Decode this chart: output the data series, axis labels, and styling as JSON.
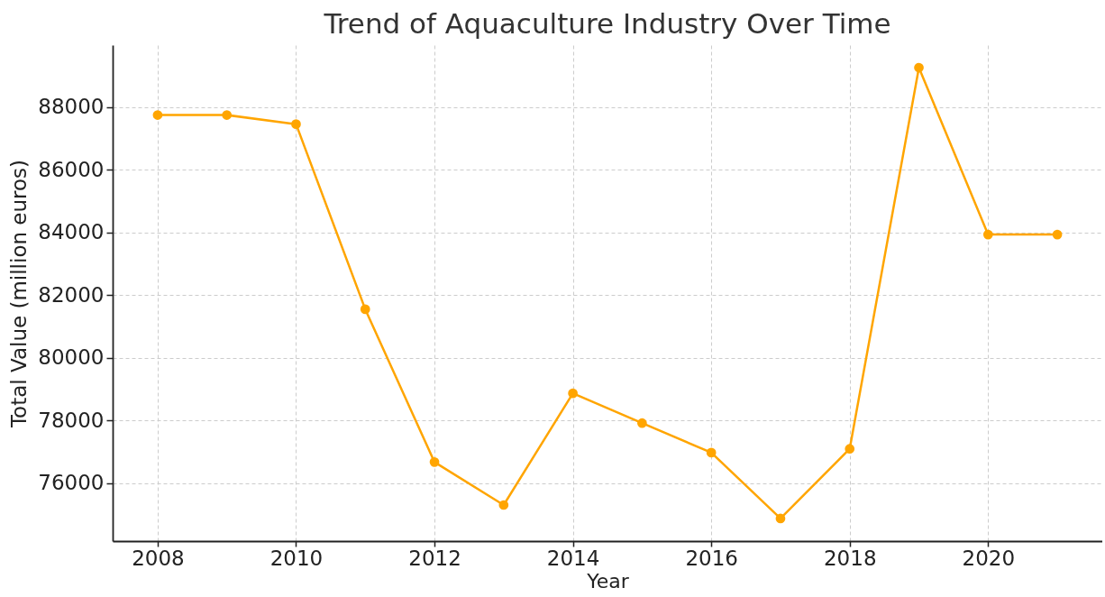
{
  "chart_data": {
    "type": "line",
    "title": "Trend of Aquaculture Industry Over Time",
    "xlabel": "Year",
    "ylabel": "Total Value (million euros)",
    "x": [
      2008,
      2009,
      2010,
      2011,
      2012,
      2013,
      2014,
      2015,
      2016,
      2017,
      2018,
      2019,
      2020,
      2021
    ],
    "series": [
      {
        "color": "#ffa500",
        "values": [
          87740,
          87740,
          87450,
          81550,
          76680,
          75310,
          78870,
          77920,
          76980,
          74880,
          77100,
          89250,
          83930,
          83930
        ]
      }
    ],
    "xlim": [
      2007.35,
      2021.65
    ],
    "xticks": [
      2008,
      2010,
      2012,
      2014,
      2016,
      2018,
      2020
    ],
    "ylim": [
      74160,
      89970
    ],
    "yticks": [
      76000,
      78000,
      80000,
      82000,
      84000,
      86000,
      88000
    ],
    "grid": true,
    "marker": "circle",
    "line_style": "solid"
  }
}
